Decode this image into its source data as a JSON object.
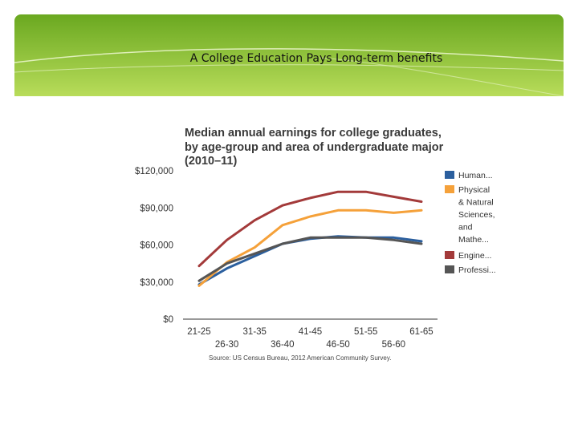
{
  "slide": {
    "title": "A College Education Pays Long-term benefits"
  },
  "colors": {
    "banner_light": "#b8dc5a",
    "banner_dark": "#6aa820",
    "accent_line": "#e8f4c8"
  },
  "chart_data": {
    "type": "line",
    "title_lines": [
      "Median annual earnings for college graduates,",
      "by age-group and area of undergraduate major",
      "(2010–11)"
    ],
    "ylim": [
      0,
      120000
    ],
    "yticks": [
      0,
      30000,
      60000,
      90000,
      120000
    ],
    "ytick_labels": [
      "$0",
      "$30,000",
      "$60,000",
      "$90,000",
      "$120,000"
    ],
    "categories": [
      "21-25",
      "26-30",
      "31-35",
      "36-40",
      "41-45",
      "46-50",
      "51-55",
      "56-60",
      "61-65"
    ],
    "category_label_rows": [
      0,
      1,
      0,
      1,
      0,
      1,
      0,
      1,
      0
    ],
    "xlabel": "",
    "ylabel": "",
    "grid": false,
    "legend_position": "right",
    "series": [
      {
        "name": "Human...",
        "color": "#2b5f9e",
        "values": [
          28000,
          41000,
          51000,
          61000,
          65000,
          67000,
          66000,
          66000,
          63000
        ]
      },
      {
        "name": "Physical & Natural Sciences, and Mathe...",
        "color": "#f5a13a",
        "values": [
          27000,
          46000,
          58000,
          76000,
          83000,
          88000,
          88000,
          86000,
          88000
        ]
      },
      {
        "name": "Engine...",
        "color": "#a33a3a",
        "values": [
          43000,
          64000,
          80000,
          92000,
          98000,
          103000,
          103000,
          99000,
          95000
        ]
      },
      {
        "name": "Professi...",
        "color": "#555555",
        "values": [
          31000,
          45000,
          53000,
          61000,
          66000,
          66000,
          66000,
          64000,
          61000
        ]
      }
    ],
    "source": "Source: US Census Bureau, 2012 American Community Survey."
  }
}
